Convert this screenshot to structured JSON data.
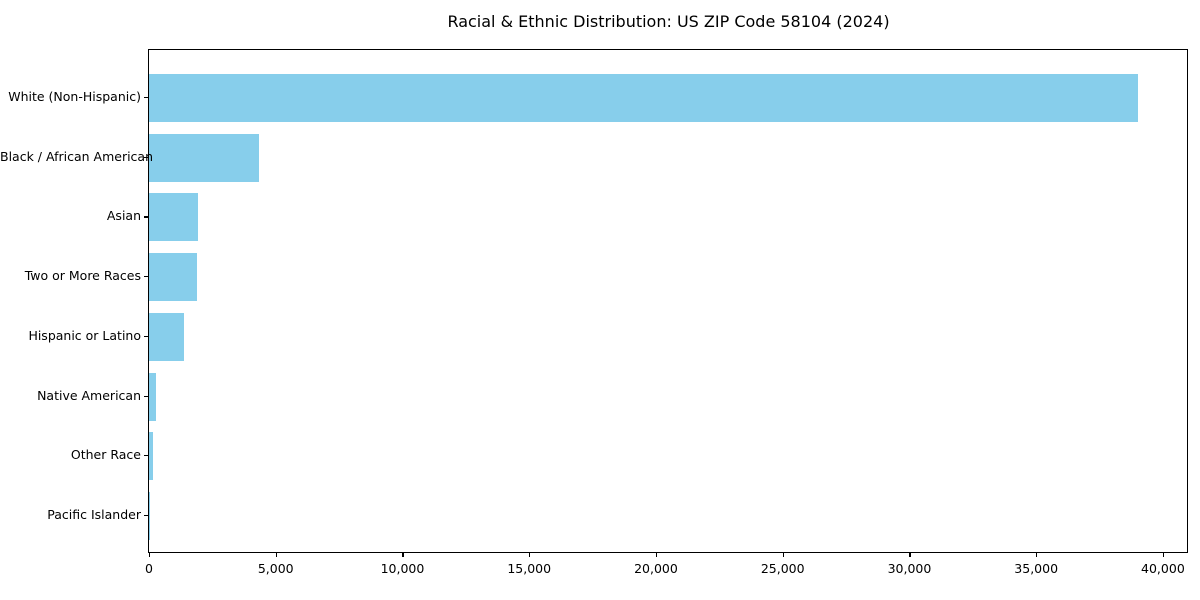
{
  "title": "Racial & Ethnic Distribution: US ZIP Code 58104 (2024)",
  "colors": {
    "bar": "#87CEEB",
    "spine": "#000000",
    "background": "#FFFFFF",
    "text": "#000000"
  },
  "chart_data": {
    "type": "bar",
    "orientation": "horizontal",
    "title": "Racial & Ethnic Distribution: US ZIP Code 58104 (2024)",
    "categories": [
      "White (Non-Hispanic)",
      "Black / African American",
      "Asian",
      "Two or More Races",
      "Hispanic or Latino",
      "Native American",
      "Other Race",
      "Pacific Islander"
    ],
    "values": [
      39000,
      4340,
      1930,
      1890,
      1380,
      265,
      145,
      10
    ],
    "bar_color": "#87CEEB",
    "xlabel": "",
    "ylabel": "",
    "xlim": [
      0,
      40950
    ],
    "xticks": [
      0,
      5000,
      10000,
      15000,
      20000,
      25000,
      30000,
      35000,
      40000
    ],
    "xtick_labels": [
      "0",
      "5,000",
      "10,000",
      "15,000",
      "20,000",
      "25,000",
      "30,000",
      "35,000",
      "40,000"
    ],
    "grid": false,
    "legend": false
  }
}
